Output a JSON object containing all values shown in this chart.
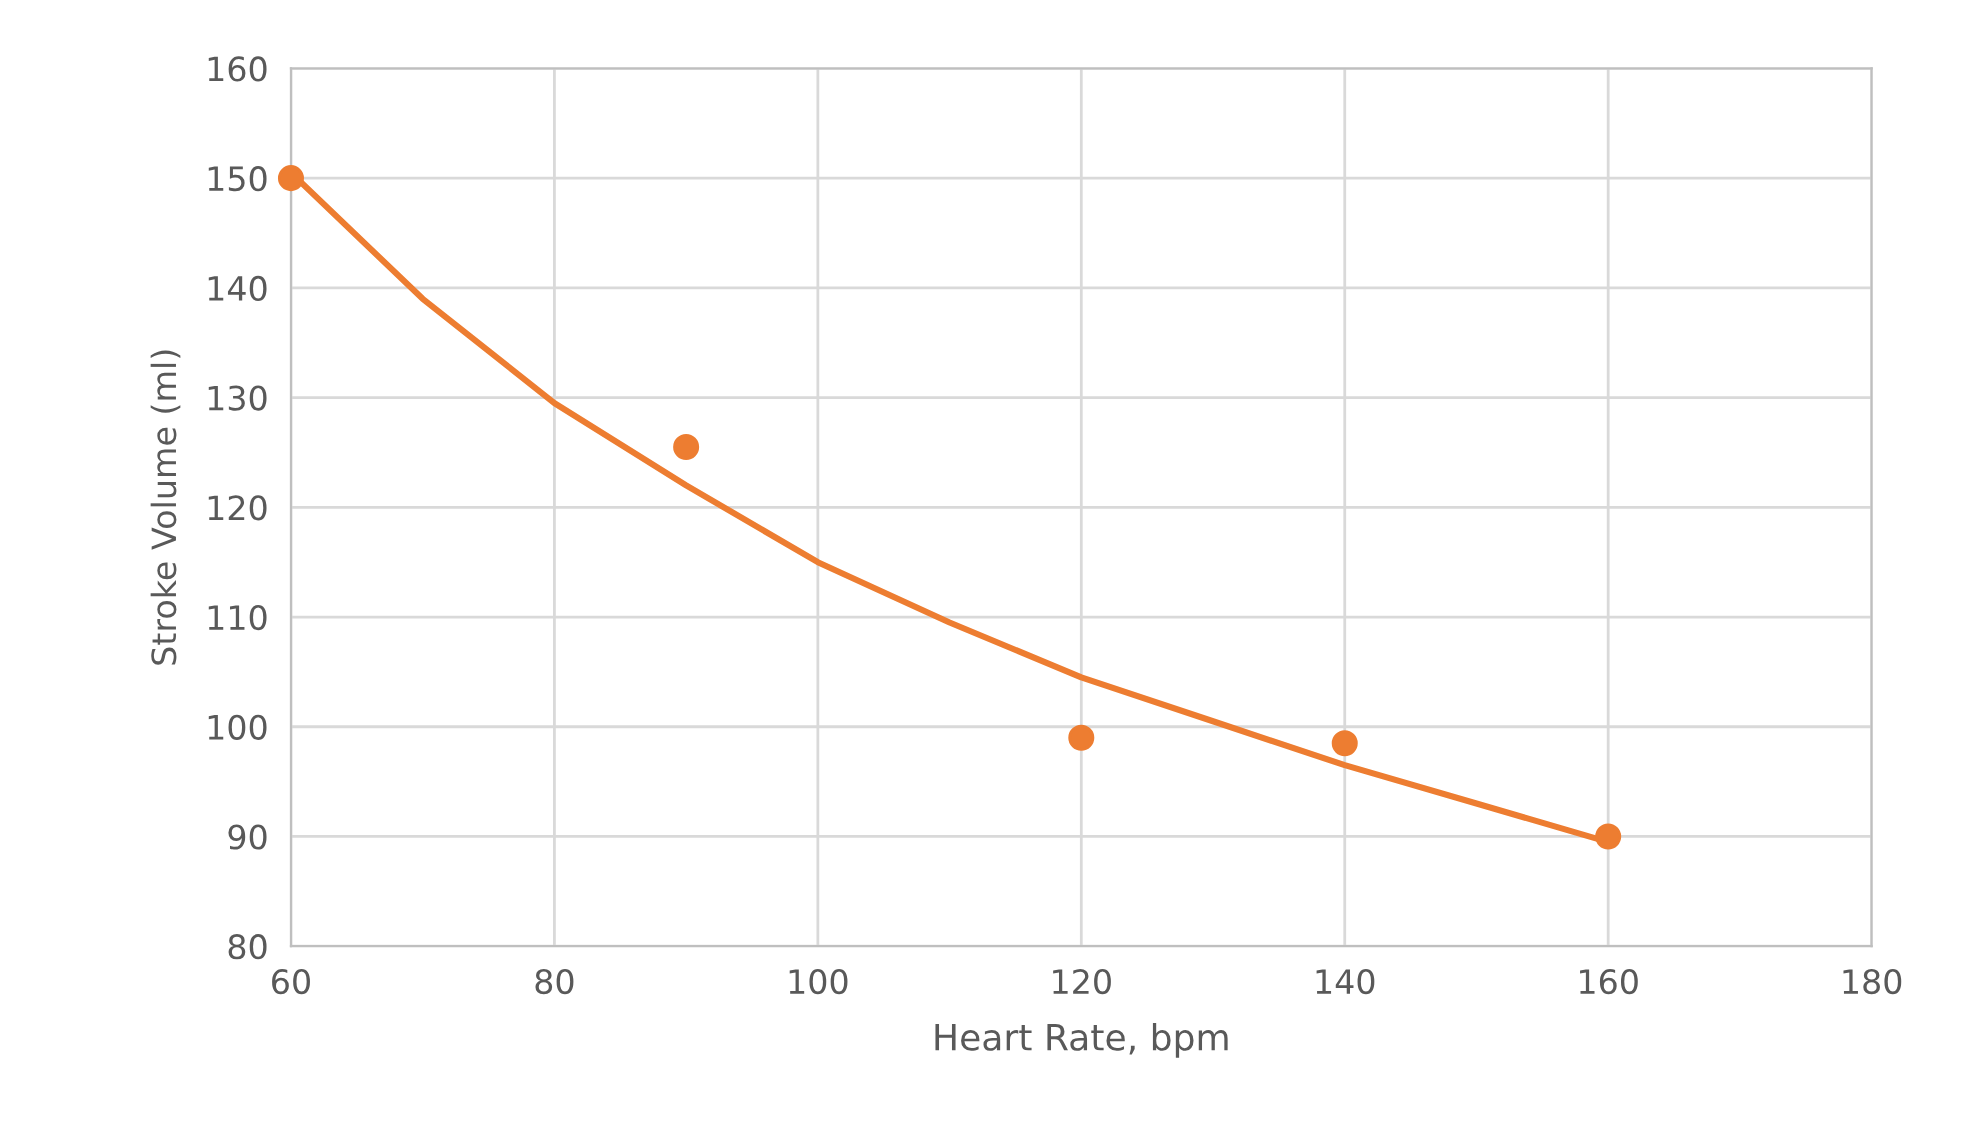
{
  "chart_data": {
    "type": "scatter",
    "xlabel": "Heart Rate, bpm",
    "ylabel": "Stroke Volume (ml)",
    "xlim": [
      60,
      180
    ],
    "xticks": [
      60,
      80,
      100,
      120,
      140,
      160,
      180
    ],
    "ylim": [
      80,
      160
    ],
    "yticks": [
      80,
      90,
      100,
      110,
      120,
      130,
      140,
      150,
      160
    ],
    "grid": true,
    "marker": "circle",
    "series": [
      {
        "color": "#ed7d31",
        "x": [
          60,
          90,
          120,
          140,
          160
        ],
        "values": [
          150,
          125.5,
          99,
          98.5,
          90
        ]
      },
      {
        "type": "line",
        "color": "#ed7d31",
        "marker": "none",
        "line_style": "solid",
        "x": [
          60,
          70,
          80,
          90,
          100,
          110,
          120,
          130,
          140,
          150,
          160
        ],
        "values": [
          150.5,
          139,
          129.5,
          122,
          115,
          109.5,
          104.5,
          100.5,
          96.5,
          93,
          89.5
        ]
      }
    ]
  }
}
